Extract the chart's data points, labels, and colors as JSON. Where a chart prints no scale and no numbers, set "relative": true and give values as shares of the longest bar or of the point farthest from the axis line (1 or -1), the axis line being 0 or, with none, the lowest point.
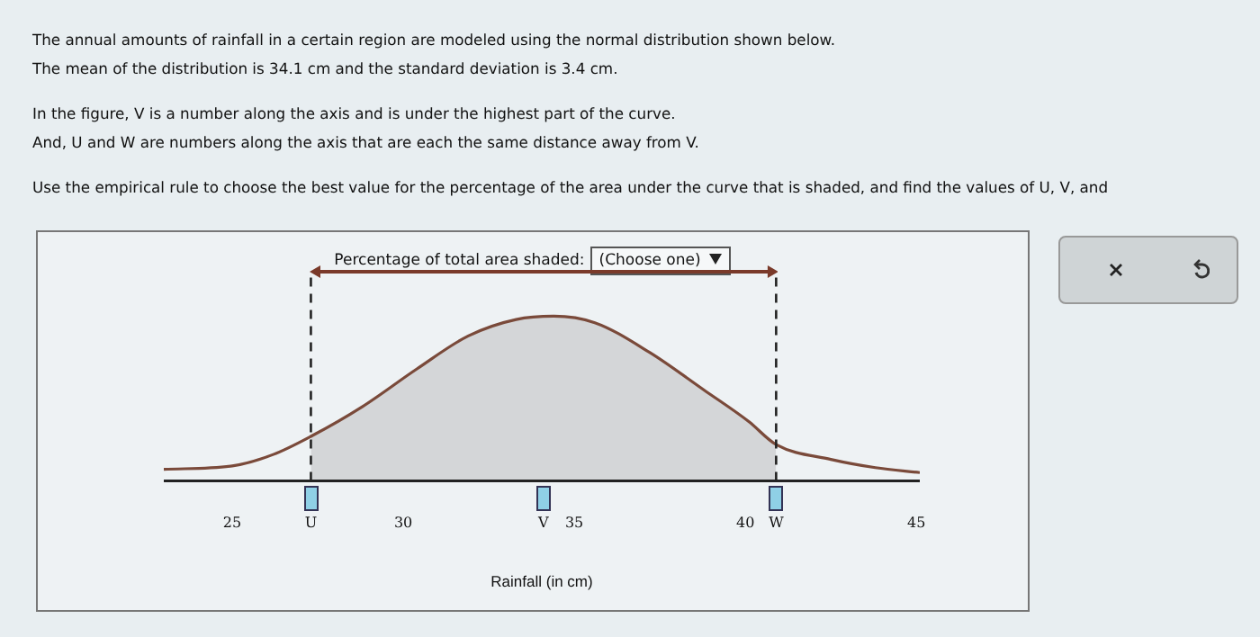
{
  "chart_data": {
    "type": "line",
    "title": "Percentage of total area shaded:",
    "xlabel": "Rainfall (in cm)",
    "relative": true,
    "xlim": [
      23,
      45.1
    ],
    "xticks": [
      25,
      {
        "value": 27.3,
        "label": "U"
      },
      30,
      {
        "value": 34.1,
        "label": "V"
      },
      35,
      40,
      {
        "value": 40.9,
        "label": "W"
      },
      45
    ],
    "grid": false,
    "legend": false,
    "marker": "none",
    "line_style": "solid",
    "series": [
      {
        "color": "#7a4a3a",
        "x": [
          23,
          25,
          26.2,
          27.3,
          28.8,
          30.4,
          31.9,
          33.3,
          34.4,
          35.6,
          37.2,
          38.8,
          40.1,
          40.9,
          42.5,
          43.8,
          45.1
        ],
        "values": [
          0.07,
          0.09,
          0.16,
          0.27,
          0.45,
          0.68,
          0.88,
          0.98,
          1,
          0.96,
          0.78,
          0.55,
          0.36,
          0.22,
          0.13,
          0.08,
          0.05
        ]
      },
      {
        "type": "area",
        "color": "#d4d6d8",
        "x": [
          27.3,
          28.8,
          30.4,
          31.9,
          33.3,
          34.4,
          35.6,
          37.2,
          38.8,
          40.1,
          40.9
        ],
        "values": [
          0.27,
          0.45,
          0.68,
          0.88,
          0.98,
          1,
          0.96,
          0.78,
          0.55,
          0.36,
          0.22
        ]
      }
    ],
    "ref_lines": [
      {
        "axis": "x",
        "value": 27.3,
        "line_style": "dashed",
        "color": "#222222"
      },
      {
        "axis": "x",
        "value": 40.9,
        "line_style": "dashed",
        "color": "#222222"
      }
    ],
    "annotations": [
      "The annual amounts of rainfall in a certain region are modeled using the normal distribution shown below.\nThe mean of the distribution is 34.1 cm and the standard deviation is 3.4 cm.",
      "In the figure, V is a number along the axis and is under the highest part of the curve.\nAnd, U and W are numbers along the axis that are each the same distance away from V.",
      "Use the empirical rule to choose the best value for the percentage of the area under the curve that is shaded, and find the values of U, V, and",
      "(Choose one)"
    ]
  }
}
